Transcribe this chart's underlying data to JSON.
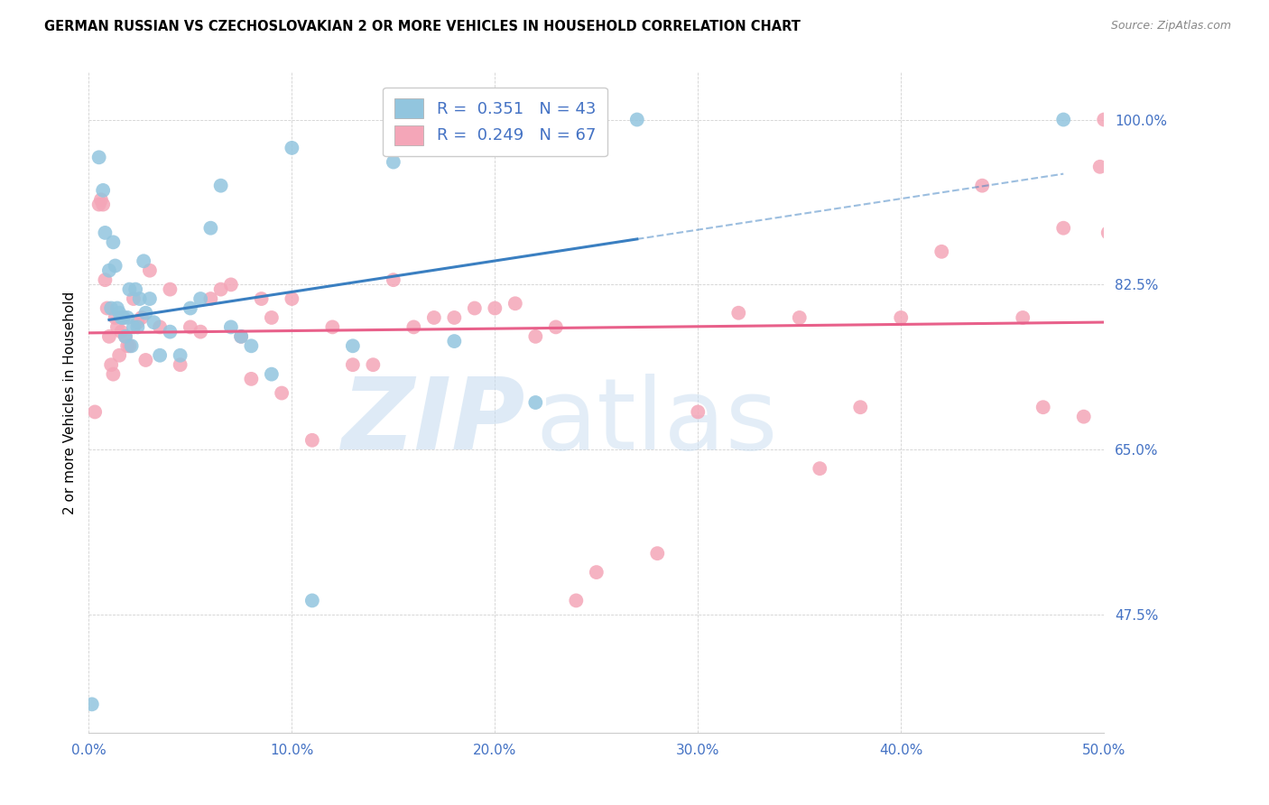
{
  "title": "GERMAN RUSSIAN VS CZECHOSLOVAKIAN 2 OR MORE VEHICLES IN HOUSEHOLD CORRELATION CHART",
  "source": "Source: ZipAtlas.com",
  "ylabel": "2 or more Vehicles in Household",
  "r_blue": "0.351",
  "n_blue": "43",
  "r_pink": "0.249",
  "n_pink": "67",
  "blue_color": "#92c5de",
  "pink_color": "#f4a6b8",
  "line_blue": "#3a7fc1",
  "line_pink": "#e8608a",
  "xlim": [
    0.0,
    50.0
  ],
  "ylim": [
    35.0,
    105.0
  ],
  "xticks": [
    0.0,
    10.0,
    20.0,
    30.0,
    40.0,
    50.0
  ],
  "yticks": [
    47.5,
    65.0,
    82.5,
    100.0
  ],
  "xticklabels": [
    "0.0%",
    "10.0%",
    "20.0%",
    "30.0%",
    "40.0%",
    "50.0%"
  ],
  "yticklabels": [
    "47.5%",
    "65.0%",
    "82.5%",
    "100.0%"
  ],
  "blue_x": [
    0.15,
    0.5,
    0.7,
    0.8,
    1.0,
    1.1,
    1.2,
    1.3,
    1.4,
    1.5,
    1.6,
    1.7,
    1.8,
    1.9,
    2.0,
    2.1,
    2.2,
    2.3,
    2.4,
    2.5,
    2.7,
    2.8,
    3.0,
    3.2,
    3.5,
    4.0,
    4.5,
    5.0,
    5.5,
    6.0,
    6.5,
    7.0,
    7.5,
    8.0,
    9.0,
    10.0,
    11.0,
    13.0,
    15.0,
    18.0,
    22.0,
    27.0,
    48.0
  ],
  "blue_y": [
    38.0,
    96.0,
    92.5,
    88.0,
    84.0,
    80.0,
    87.0,
    84.5,
    80.0,
    79.5,
    79.0,
    79.0,
    77.0,
    79.0,
    82.0,
    76.0,
    78.0,
    82.0,
    78.0,
    81.0,
    85.0,
    79.5,
    81.0,
    78.5,
    75.0,
    77.5,
    75.0,
    80.0,
    81.0,
    88.5,
    93.0,
    78.0,
    77.0,
    76.0,
    73.0,
    97.0,
    49.0,
    76.0,
    95.5,
    76.5,
    70.0,
    100.0,
    100.0
  ],
  "pink_x": [
    0.3,
    0.5,
    0.6,
    0.7,
    0.8,
    0.9,
    1.0,
    1.1,
    1.2,
    1.3,
    1.4,
    1.5,
    1.6,
    1.7,
    1.8,
    1.9,
    2.0,
    2.2,
    2.4,
    2.6,
    2.8,
    3.0,
    3.5,
    4.0,
    4.5,
    5.0,
    5.5,
    6.0,
    6.5,
    7.0,
    7.5,
    8.0,
    8.5,
    9.0,
    9.5,
    10.0,
    11.0,
    12.0,
    13.0,
    14.0,
    15.0,
    16.0,
    17.0,
    18.0,
    19.0,
    20.0,
    21.0,
    22.0,
    23.0,
    24.0,
    25.0,
    28.0,
    30.0,
    32.0,
    35.0,
    36.0,
    38.0,
    40.0,
    42.0,
    44.0,
    46.0,
    47.0,
    48.0,
    49.0,
    50.0,
    50.2,
    49.8
  ],
  "pink_y": [
    69.0,
    91.0,
    91.5,
    91.0,
    83.0,
    80.0,
    77.0,
    74.0,
    73.0,
    79.0,
    78.0,
    75.0,
    77.5,
    79.0,
    77.0,
    76.0,
    76.0,
    81.0,
    78.5,
    79.0,
    74.5,
    84.0,
    78.0,
    82.0,
    74.0,
    78.0,
    77.5,
    81.0,
    82.0,
    82.5,
    77.0,
    72.5,
    81.0,
    79.0,
    71.0,
    81.0,
    66.0,
    78.0,
    74.0,
    74.0,
    83.0,
    78.0,
    79.0,
    79.0,
    80.0,
    80.0,
    80.5,
    77.0,
    78.0,
    49.0,
    52.0,
    54.0,
    69.0,
    79.5,
    79.0,
    63.0,
    69.5,
    79.0,
    86.0,
    93.0,
    79.0,
    69.5,
    88.5,
    68.5,
    100.0,
    88.0,
    95.0
  ]
}
